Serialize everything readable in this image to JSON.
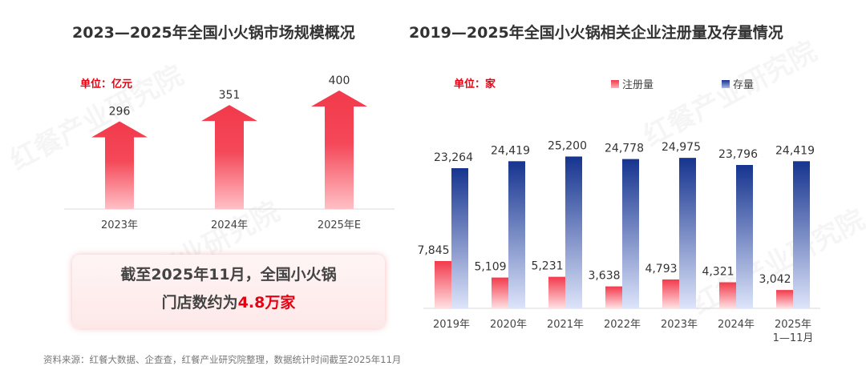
{
  "watermark": "红餐产业研究院",
  "source": "资料来源：红餐大数据、企查查，红餐产业研究院整理，数据统计时间截至2025年11月",
  "callout": {
    "line1": "截至2025年11月，全国小火锅",
    "line2_prefix": "门店数约为",
    "line2_highlight": "4.8万家"
  },
  "colors": {
    "accent_red": "#e60012",
    "arrow_red": "#f23a4c",
    "blue": "#16348f"
  },
  "chart_data": [
    {
      "type": "bar",
      "style": "arrow",
      "title": "2023—2025年全国小火锅市场规模概况",
      "unit": "单位：亿元",
      "categories": [
        "2023年",
        "2024年",
        "2025年E"
      ],
      "values": [
        296,
        351,
        400
      ],
      "value_labels": [
        "296",
        "351",
        "400"
      ],
      "ylim": [
        0,
        400
      ],
      "grid": false
    },
    {
      "type": "bar",
      "title": "2019—2025年全国小火锅相关企业注册量及存量情况",
      "unit": "单位：家",
      "categories": [
        [
          "2019年"
        ],
        [
          "2020年"
        ],
        [
          "2021年"
        ],
        [
          "2022年"
        ],
        [
          "2023年"
        ],
        [
          "2024年"
        ],
        [
          "2025年",
          "1—11月"
        ]
      ],
      "series": [
        {
          "name": "注册量",
          "color": "#f23a4c",
          "values": [
            7845,
            5109,
            5231,
            3638,
            4793,
            4321,
            3042
          ],
          "labels": [
            "7,845",
            "5,109",
            "5,231",
            "3,638",
            "4,793",
            "4,321",
            "3,042"
          ]
        },
        {
          "name": "存量",
          "color": "#16348f",
          "values": [
            23264,
            24419,
            25200,
            24778,
            24975,
            23796,
            24419
          ],
          "labels": [
            "23,264",
            "24,419",
            "25,200",
            "24,778",
            "24,975",
            "23,796",
            "24,419"
          ]
        }
      ],
      "legend": "top-right",
      "grid": false
    }
  ]
}
